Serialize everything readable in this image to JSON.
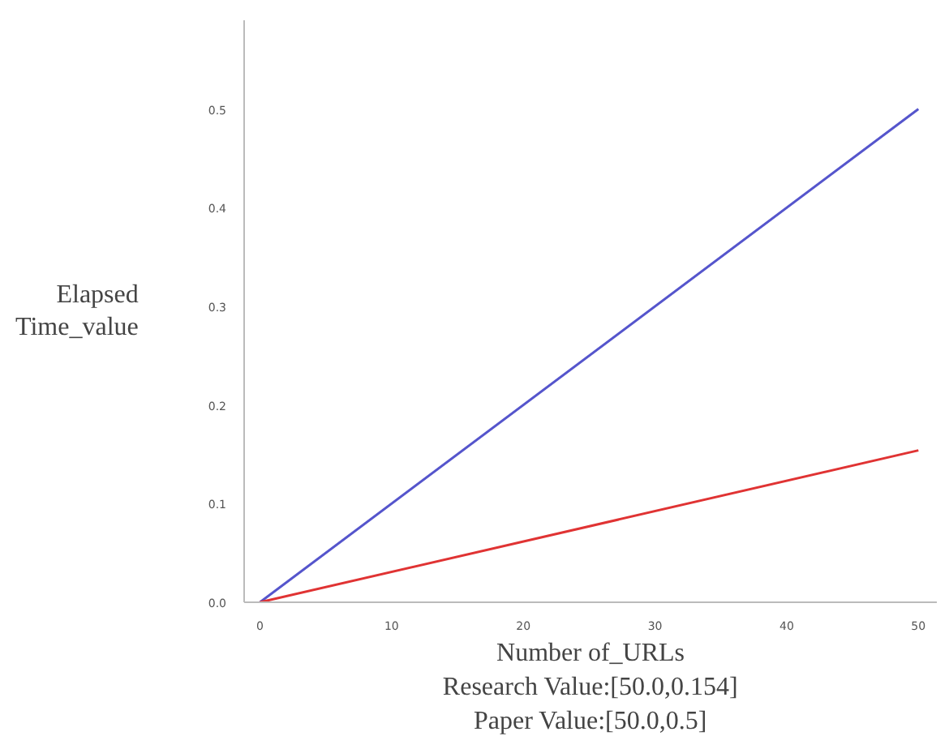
{
  "chart_data": {
    "type": "line",
    "xlabel": "Number of_URLs",
    "ylabel": "Elapsed\nTime_value",
    "x": [
      0,
      50
    ],
    "series": [
      {
        "color": "#5555cc",
        "values": [
          0,
          0.5
        ]
      },
      {
        "color": "#e03333",
        "values": [
          0,
          0.154
        ]
      }
    ],
    "xlim": [
      -1.2,
      51.4
    ],
    "ylim": [
      0,
      0.59
    ],
    "xticks": [
      0,
      10,
      20,
      30,
      40,
      50
    ],
    "yticks": [
      {
        "value": 0,
        "label": "0.0"
      },
      0.1,
      0.2,
      0.3,
      0.4,
      0.5
    ],
    "annotations": [
      "Research Value:[50.0,0.154]",
      "Paper Value:[50.0,0.5]"
    ],
    "grid": false,
    "marker": "none",
    "line_style": "solid"
  }
}
